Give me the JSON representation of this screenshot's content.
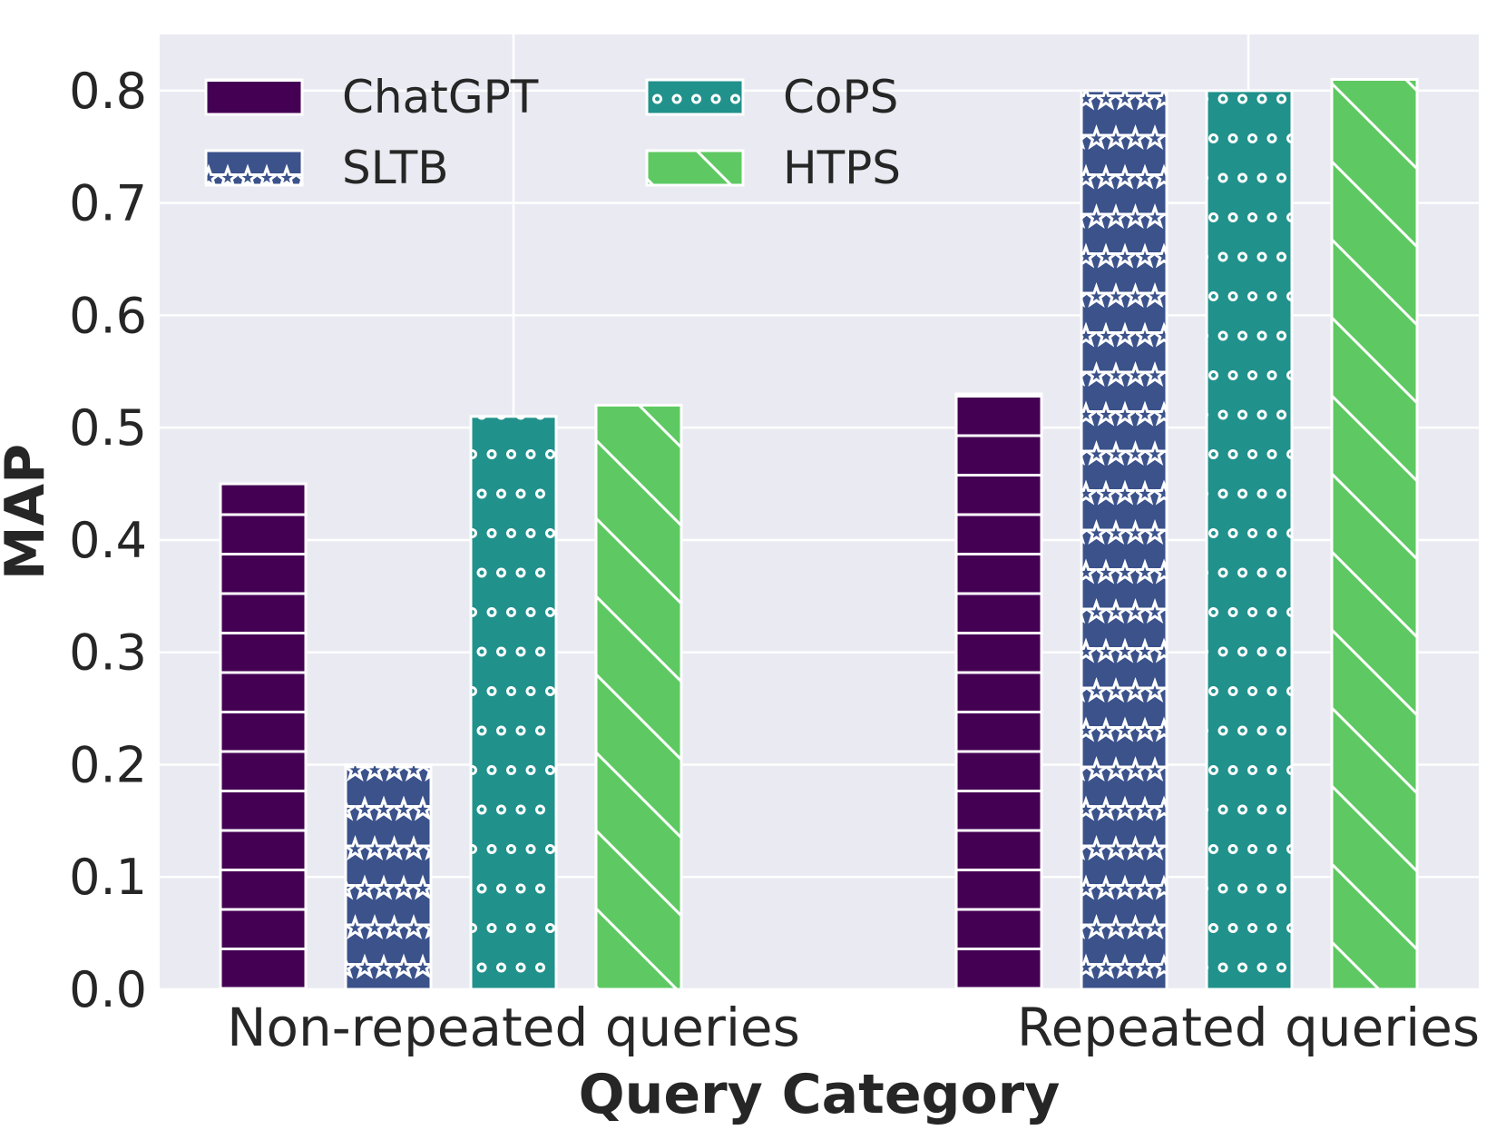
{
  "chart_data": {
    "type": "bar",
    "title": "",
    "xlabel": "Query Category",
    "ylabel": "MAP",
    "categories": [
      "Non-repeated queries",
      "Repeated queries"
    ],
    "ylim": [
      0.0,
      0.85
    ],
    "yticks": [
      "0.0",
      "0.1",
      "0.2",
      "0.3",
      "0.4",
      "0.5",
      "0.6",
      "0.7",
      "0.8"
    ],
    "grid": true,
    "legend_position": "top-left",
    "series": [
      {
        "name": "ChatGPT",
        "values": [
          0.45,
          0.53
        ],
        "color": "#440154",
        "hatch": "horizontal-lines"
      },
      {
        "name": "SLTB",
        "values": [
          0.2,
          0.8
        ],
        "color": "#3b528b",
        "hatch": "stars"
      },
      {
        "name": "CoPS",
        "values": [
          0.51,
          0.8
        ],
        "color": "#21918c",
        "hatch": "small-circles"
      },
      {
        "name": "HTPS",
        "values": [
          0.52,
          0.81
        ],
        "color": "#5ec962",
        "hatch": "diagonal-lines"
      }
    ]
  }
}
